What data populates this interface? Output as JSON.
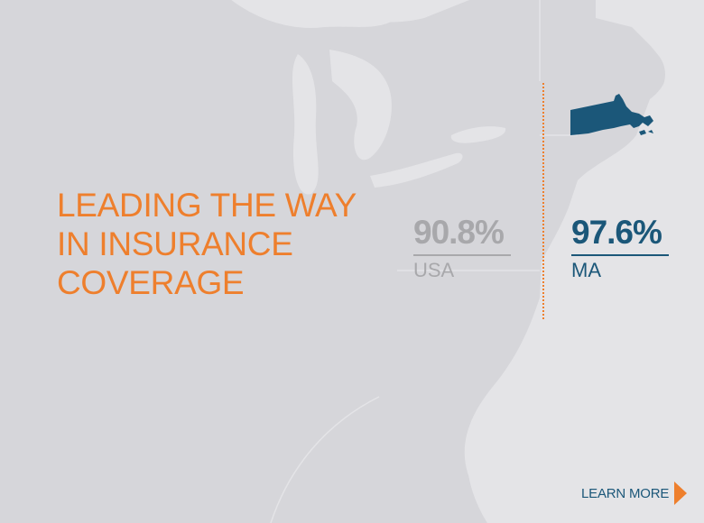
{
  "headline": {
    "lines": [
      "LEADING THE WAY",
      "IN INSURANCE",
      "COVERAGE"
    ]
  },
  "stats": {
    "usa": {
      "value": "90.8%",
      "label": "USA"
    },
    "ma": {
      "value": "97.6%",
      "label": "MA"
    }
  },
  "cta": {
    "label": "LEARN MORE",
    "icon": "arrow-right-icon"
  },
  "colors": {
    "background": "#e4e4e7",
    "land": "#d6d6da",
    "accent_orange": "#ee7f2d",
    "ma_blue": "#1b5779",
    "usa_gray": "#a8a8ab"
  }
}
